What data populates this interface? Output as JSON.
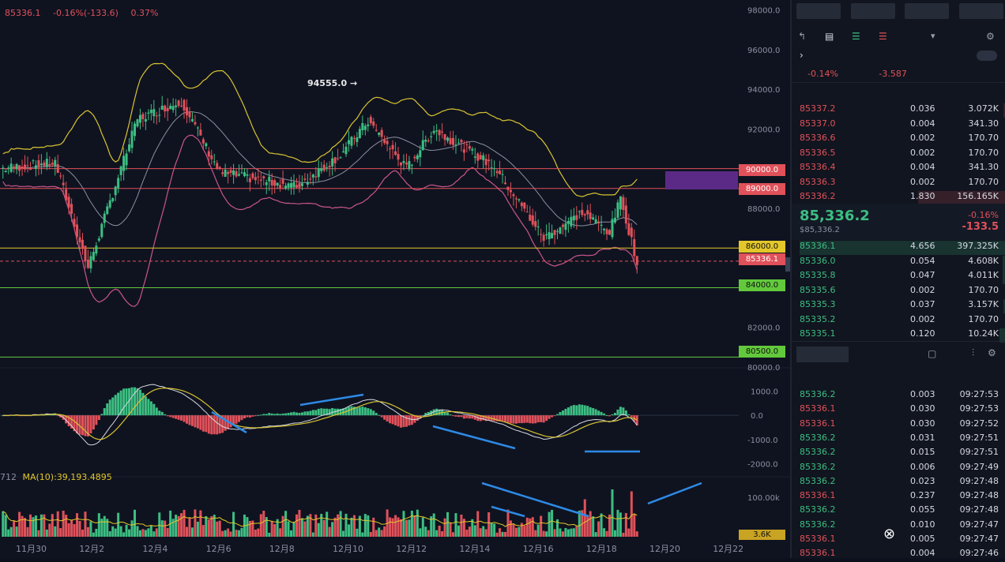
{
  "top_info": {
    "close_label": "",
    "close_value": "85336.1",
    "change_label": "",
    "change_value": "-0.16%(-133.6)",
    "amp_label": "",
    "amp_value": "0.37%"
  },
  "volume_ma_label": "MA(10):39,193.4895",
  "volume_ma_prefix": "712",
  "high_marker": "94555.0",
  "colors": {
    "up": "#3cbe82",
    "down": "#e0515a",
    "boll_upper": "#d9c431",
    "boll_mid": "#8c8fa0",
    "boll_lower": "#c9568a",
    "resistance": "#e0515a",
    "key": "#e3c72a",
    "support": "#62c93c",
    "label_box": "#5b2a86",
    "annotation": "#f3d33c",
    "arrow": "#2e8ae6"
  },
  "annotations": {
    "resistance": "",
    "key_level": "",
    "target_support": "",
    "bottom_support": "",
    "macd_note": "",
    "volume_note": ""
  },
  "price_tags": {
    "t90000": "90000.0",
    "t89000": "89000.0",
    "t86000": "86000.0",
    "t85336": "85336.1",
    "t84000": "84000.0",
    "t80500": "80500.0",
    "vol": "3.6K"
  },
  "bottom_right_chars": [
    "",
    ""
  ],
  "watermark": "",
  "footer_mark": "",
  "chart_data": {
    "type": "candlestick",
    "price_axis": {
      "ticks": [
        "98000.0",
        "96000.0",
        "94000.0",
        "92000.0",
        "90000.0",
        "88000.0",
        "86000.0",
        "84000.0",
        "82000.0",
        "80000.0"
      ],
      "ylim": [
        80000,
        98500
      ]
    },
    "macd_axis": {
      "ticks": [
        "1000.0",
        "0.0",
        "-1000.0",
        "-2000.0"
      ],
      "ylim": [
        -2400,
        1500
      ]
    },
    "volume_axis": {
      "ticks": [
        "100.00k"
      ],
      "ylim": [
        0,
        140
      ]
    },
    "x_ticks": [
      "11月30",
      "12月2",
      "12月4",
      "12月6",
      "12月8",
      "12月10",
      "12月12",
      "12月14",
      "12月16",
      "12月18",
      "12月20",
      "12月22"
    ],
    "horizontal_levels": [
      {
        "value": 90000,
        "role": "resistance"
      },
      {
        "value": 89000,
        "role": "resistance"
      },
      {
        "value": 86000,
        "role": "key"
      },
      {
        "value": 84000,
        "role": "support"
      },
      {
        "value": 80500,
        "role": "support"
      }
    ],
    "current_price": 85336.1,
    "segments": [
      {
        "from": 90000,
        "to": 90300,
        "n": 20,
        "drift": 1
      },
      {
        "from": 90300,
        "to": 85000,
        "n": 12,
        "drift": 1
      },
      {
        "from": 85000,
        "to": 92500,
        "n": 18,
        "drift": 1
      },
      {
        "from": 92500,
        "to": 93400,
        "n": 16,
        "drift": 1
      },
      {
        "from": 93400,
        "to": 89800,
        "n": 14,
        "drift": 1
      },
      {
        "from": 89800,
        "to": 89100,
        "n": 28,
        "drift": 1
      },
      {
        "from": 89100,
        "to": 90700,
        "n": 16,
        "drift": 1
      },
      {
        "from": 90700,
        "to": 92400,
        "n": 10,
        "drift": 1
      },
      {
        "from": 92400,
        "to": 90000,
        "n": 14,
        "drift": 1
      },
      {
        "from": 90000,
        "to": 92000,
        "n": 10,
        "drift": 1
      },
      {
        "from": 92000,
        "to": 90100,
        "n": 22,
        "drift": 1
      },
      {
        "from": 90100,
        "to": 86500,
        "n": 18,
        "drift": 1
      },
      {
        "from": 86500,
        "to": 87800,
        "n": 14,
        "drift": 1
      },
      {
        "from": 87800,
        "to": 86800,
        "n": 10,
        "drift": 1
      },
      {
        "from": 86800,
        "to": 88500,
        "n": 4,
        "drift": 1
      },
      {
        "from": 88500,
        "to": 85300,
        "n": 6,
        "drift": 1
      }
    ]
  },
  "side": {
    "buttons": [
      "",
      "",
      "",
      ""
    ],
    "decimals": "",
    "entrust_title": "",
    "ratio_label": "",
    "ratio_value": "-0.14%",
    "diff_label": "",
    "diff_value": "-3.587",
    "ob_headers": [
      "",
      "",
      ""
    ],
    "asks": [
      [
        "85337.2",
        "0.036",
        "3.072K"
      ],
      [
        "85337.0",
        "0.004",
        "341.30"
      ],
      [
        "85336.6",
        "0.002",
        "170.70"
      ],
      [
        "85336.5",
        "0.002",
        "170.70"
      ],
      [
        "85336.4",
        "0.004",
        "341.30"
      ],
      [
        "85336.3",
        "0.002",
        "170.70"
      ],
      [
        "85336.2",
        "1.830",
        "156.165K"
      ]
    ],
    "last_price": "85,336.2",
    "last_price_sub": "$85,336.2",
    "last_change_pct": "-0.16%",
    "last_change_abs": "-133.5",
    "bids": [
      [
        "85336.1",
        "4.656",
        "397.325K"
      ],
      [
        "85336.0",
        "0.054",
        "4.608K"
      ],
      [
        "85335.8",
        "0.047",
        "4.011K"
      ],
      [
        "85335.6",
        "0.002",
        "170.70"
      ],
      [
        "85335.3",
        "0.037",
        "3.157K"
      ],
      [
        "85335.2",
        "0.002",
        "170.70"
      ],
      [
        "85335.1",
        "0.120",
        "10.24K"
      ]
    ],
    "tabs": [
      "",
      "",
      ""
    ],
    "trade_headers": [
      "",
      "",
      ""
    ],
    "trades": [
      [
        "85336.2",
        "0.003",
        "09:27:53",
        "green"
      ],
      [
        "85336.1",
        "0.030",
        "09:27:53",
        "red"
      ],
      [
        "85336.1",
        "0.030",
        "09:27:52",
        "red"
      ],
      [
        "85336.2",
        "0.031",
        "09:27:51",
        "green"
      ],
      [
        "85336.2",
        "0.015",
        "09:27:51",
        "green"
      ],
      [
        "85336.2",
        "0.006",
        "09:27:49",
        "green"
      ],
      [
        "85336.2",
        "0.023",
        "09:27:48",
        "green"
      ],
      [
        "85336.1",
        "0.237",
        "09:27:48",
        "red"
      ],
      [
        "85336.2",
        "0.055",
        "09:27:48",
        "green"
      ],
      [
        "85336.2",
        "0.010",
        "09:27:47",
        "green"
      ],
      [
        "85336.1",
        "0.005",
        "09:27:47",
        "red"
      ],
      [
        "85336.1",
        "0.004",
        "09:27:46",
        "red"
      ]
    ]
  }
}
